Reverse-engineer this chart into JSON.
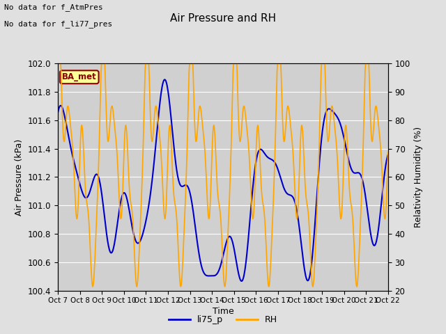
{
  "title": "Air Pressure and RH",
  "xlabel": "Time",
  "ylabel_left": "Air Pressure (kPa)",
  "ylabel_right": "Relativity Humidity (%)",
  "note_line1": "No data for f_AtmPres",
  "note_line2": "No data for f_li77_pres",
  "legend_label": "BA_met",
  "legend_color_bg": "#ffff99",
  "legend_color_border": "#8B0000",
  "ylim_left": [
    100.4,
    102.0
  ],
  "ylim_right": [
    20,
    100
  ],
  "bg_color": "#e0e0e0",
  "plot_bg_color": "#d0d0d0",
  "grid_color": "#ffffff",
  "line_blue_color": "#0000cc",
  "line_orange_color": "#ffa500",
  "xtick_labels": [
    "Oct 7",
    "Oct 8",
    "Oct 9",
    "Oct 10",
    "Oct 11",
    "Oct 12",
    "Oct 13",
    "Oct 14",
    "Oct 15",
    "Oct 16",
    "Oct 17",
    "Oct 18",
    "Oct 19",
    "Oct 20",
    "Oct 21",
    "Oct 22"
  ],
  "xtick_positions": [
    0,
    24,
    48,
    72,
    96,
    120,
    144,
    168,
    192,
    216,
    240,
    264,
    288,
    312,
    336,
    360
  ]
}
